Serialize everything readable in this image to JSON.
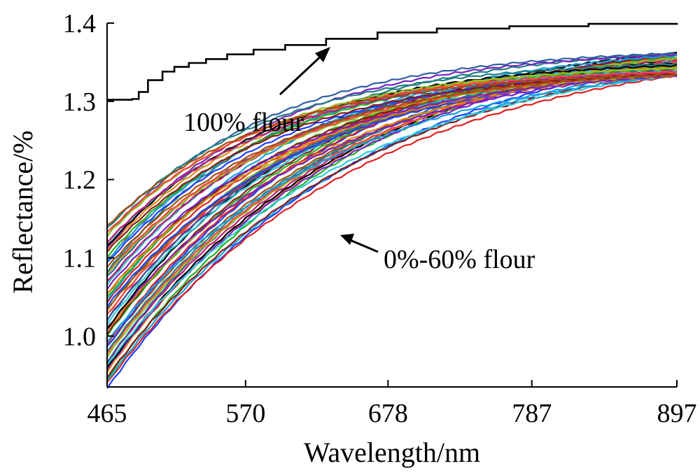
{
  "chart_data": {
    "type": "line",
    "title": "",
    "xlabel": "Wavelength/nm",
    "ylabel": "Reflectance/%",
    "xlim": [
      465,
      897
    ],
    "ylim": [
      0.935,
      1.4
    ],
    "x_ticks": [
      "465",
      "570",
      "678",
      "787",
      "897"
    ],
    "y_ticks": [
      "1.0",
      "1.1",
      "1.2",
      "1.3",
      "1.4"
    ],
    "grid": false,
    "annotations": [
      {
        "text": "100% flour",
        "target": "reference-curve"
      },
      {
        "text": "0%-60% flour",
        "target": "sample-curves"
      }
    ],
    "reference_series": {
      "x": [
        465,
        484,
        489,
        496,
        507,
        516,
        527,
        540,
        556,
        576,
        600,
        631,
        670,
        715,
        770,
        830,
        897
      ],
      "values": [
        1.302,
        1.303,
        1.312,
        1.327,
        1.338,
        1.344,
        1.349,
        1.354,
        1.36,
        1.366,
        1.372,
        1.38,
        1.388,
        1.393,
        1.396,
        1.399,
        1.4
      ]
    },
    "sample_family": {
      "count": 60,
      "x_range": [
        465,
        897
      ],
      "start_range": [
        0.935,
        1.14
      ],
      "end_range": [
        1.322,
        1.362
      ],
      "shape": "concave increasing"
    },
    "colors": [
      "#1f3fff",
      "#e02020",
      "#12a0e0",
      "#20b020",
      "#8a1a1a",
      "#e08a10",
      "#7a20c0",
      "#000000",
      "#2ec8d8",
      "#c01870",
      "#3060a0",
      "#90c020",
      "#ff4040",
      "#208080",
      "#a05010"
    ]
  }
}
